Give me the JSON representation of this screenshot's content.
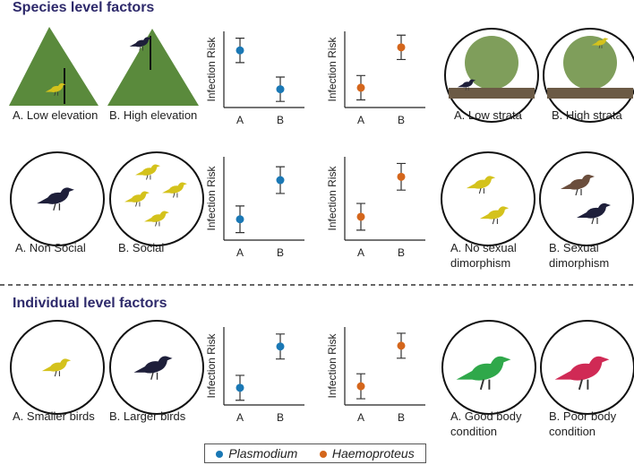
{
  "sections": [
    {
      "title": "Species level factors"
    },
    {
      "title": "Individual level factors"
    }
  ],
  "rows": [
    {
      "labels": [
        "A. Low elevation",
        "B. High elevation",
        "A. Low strata",
        "B. High strata"
      ]
    },
    {
      "labels": [
        "A. Non Social",
        "B. Social",
        "A. No sexual dimorphism",
        "B. Sexual dimorphism"
      ]
    },
    {
      "labels": [
        "A. Smaller birds",
        "B. Larger birds",
        "A. Good body condition",
        "B. Poor body condition"
      ]
    }
  ],
  "legend": [
    {
      "name": "Plasmodium",
      "color": "#1a78b5"
    },
    {
      "name": "Haemoproteus",
      "color": "#d4661c"
    }
  ],
  "chart_data": [
    {
      "type": "errorbar",
      "ylabel": "Infection Risk",
      "categories": [
        "A",
        "B"
      ],
      "ylim": [
        0,
        10
      ],
      "series": [
        {
          "color": "#1a78b5",
          "values": [
            7.5,
            2.4
          ],
          "errors": [
            1.6,
            1.6
          ]
        }
      ]
    },
    {
      "type": "errorbar",
      "ylabel": "Infection Risk",
      "categories": [
        "A",
        "B"
      ],
      "ylim": [
        0,
        10
      ],
      "series": [
        {
          "color": "#d4661c",
          "values": [
            2.6,
            7.9
          ],
          "errors": [
            1.6,
            1.6
          ]
        }
      ]
    },
    {
      "type": "errorbar",
      "ylabel": "Infection Risk",
      "categories": [
        "A",
        "B"
      ],
      "ylim": [
        0,
        10
      ],
      "series": [
        {
          "color": "#1a78b5",
          "values": [
            2.5,
            7.2
          ],
          "errors": [
            1.6,
            1.6
          ]
        }
      ]
    },
    {
      "type": "errorbar",
      "ylabel": "Infection Risk",
      "categories": [
        "A",
        "B"
      ],
      "ylim": [
        0,
        10
      ],
      "series": [
        {
          "color": "#d4661c",
          "values": [
            2.8,
            7.6
          ],
          "errors": [
            1.6,
            1.6
          ]
        }
      ]
    },
    {
      "type": "errorbar",
      "ylabel": "Infection Risk",
      "categories": [
        "A",
        "B"
      ],
      "ylim": [
        0,
        10
      ],
      "series": [
        {
          "color": "#1a78b5",
          "values": [
            2.2,
            7.5
          ],
          "errors": [
            1.6,
            1.6
          ]
        }
      ]
    },
    {
      "type": "errorbar",
      "ylabel": "Infection Risk",
      "categories": [
        "A",
        "B"
      ],
      "ylim": [
        0,
        10
      ],
      "series": [
        {
          "color": "#d4661c",
          "values": [
            2.4,
            7.6
          ],
          "errors": [
            1.6,
            1.6
          ]
        }
      ]
    }
  ]
}
